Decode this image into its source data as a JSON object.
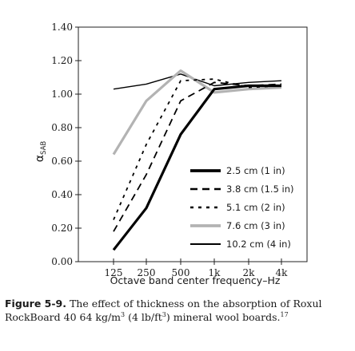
{
  "chart_data": {
    "type": "line",
    "title": "",
    "xlabel": "Octave band center frequency–Hz",
    "ylabel": "α",
    "ylabel_sub": "SAB",
    "categories": [
      "125",
      "250",
      "500",
      "1k",
      "2k",
      "4k"
    ],
    "ylim": [
      0,
      1.4
    ],
    "yticks": [
      "0.00",
      "0.20",
      "0.40",
      "0.60",
      "0.80",
      "1.00",
      "1.20",
      "1.40"
    ],
    "ytick_values": [
      0,
      0.2,
      0.4,
      0.6,
      0.8,
      1.0,
      1.2,
      1.4
    ],
    "grid": false,
    "legend_position": "bottom-right",
    "series": [
      {
        "name": "2.5 cm (1 in)",
        "values": [
          0.07,
          0.32,
          0.76,
          1.03,
          1.05,
          1.05
        ],
        "color": "#000000",
        "style": "solid-thick"
      },
      {
        "name": "3.8 cm (1.5 in)",
        "values": [
          0.18,
          0.52,
          0.96,
          1.07,
          1.05,
          1.06
        ],
        "color": "#000000",
        "style": "dashed"
      },
      {
        "name": "5.1 cm (2 in)",
        "values": [
          0.25,
          0.7,
          1.08,
          1.09,
          1.04,
          1.05
        ],
        "color": "#000000",
        "style": "dotted"
      },
      {
        "name": "7.6 cm (3 in)",
        "values": [
          0.64,
          0.96,
          1.14,
          1.01,
          1.03,
          1.04
        ],
        "color": "#b3b3b3",
        "style": "solid-thick"
      },
      {
        "name": "10.2 cm (4 in)",
        "values": [
          1.03,
          1.06,
          1.12,
          1.05,
          1.07,
          1.08
        ],
        "color": "#000000",
        "style": "solid-thin"
      }
    ]
  },
  "caption": {
    "label": "Figure 5-9.",
    "text_part1": " The effect of thickness on the absorption of Roxul RockBoard 40 64 kg/m",
    "sup1": "3",
    "text_part2": " (4 lb/ft",
    "sup2": "3",
    "text_part3": ") mineral wool boards.",
    "ref": "17"
  }
}
